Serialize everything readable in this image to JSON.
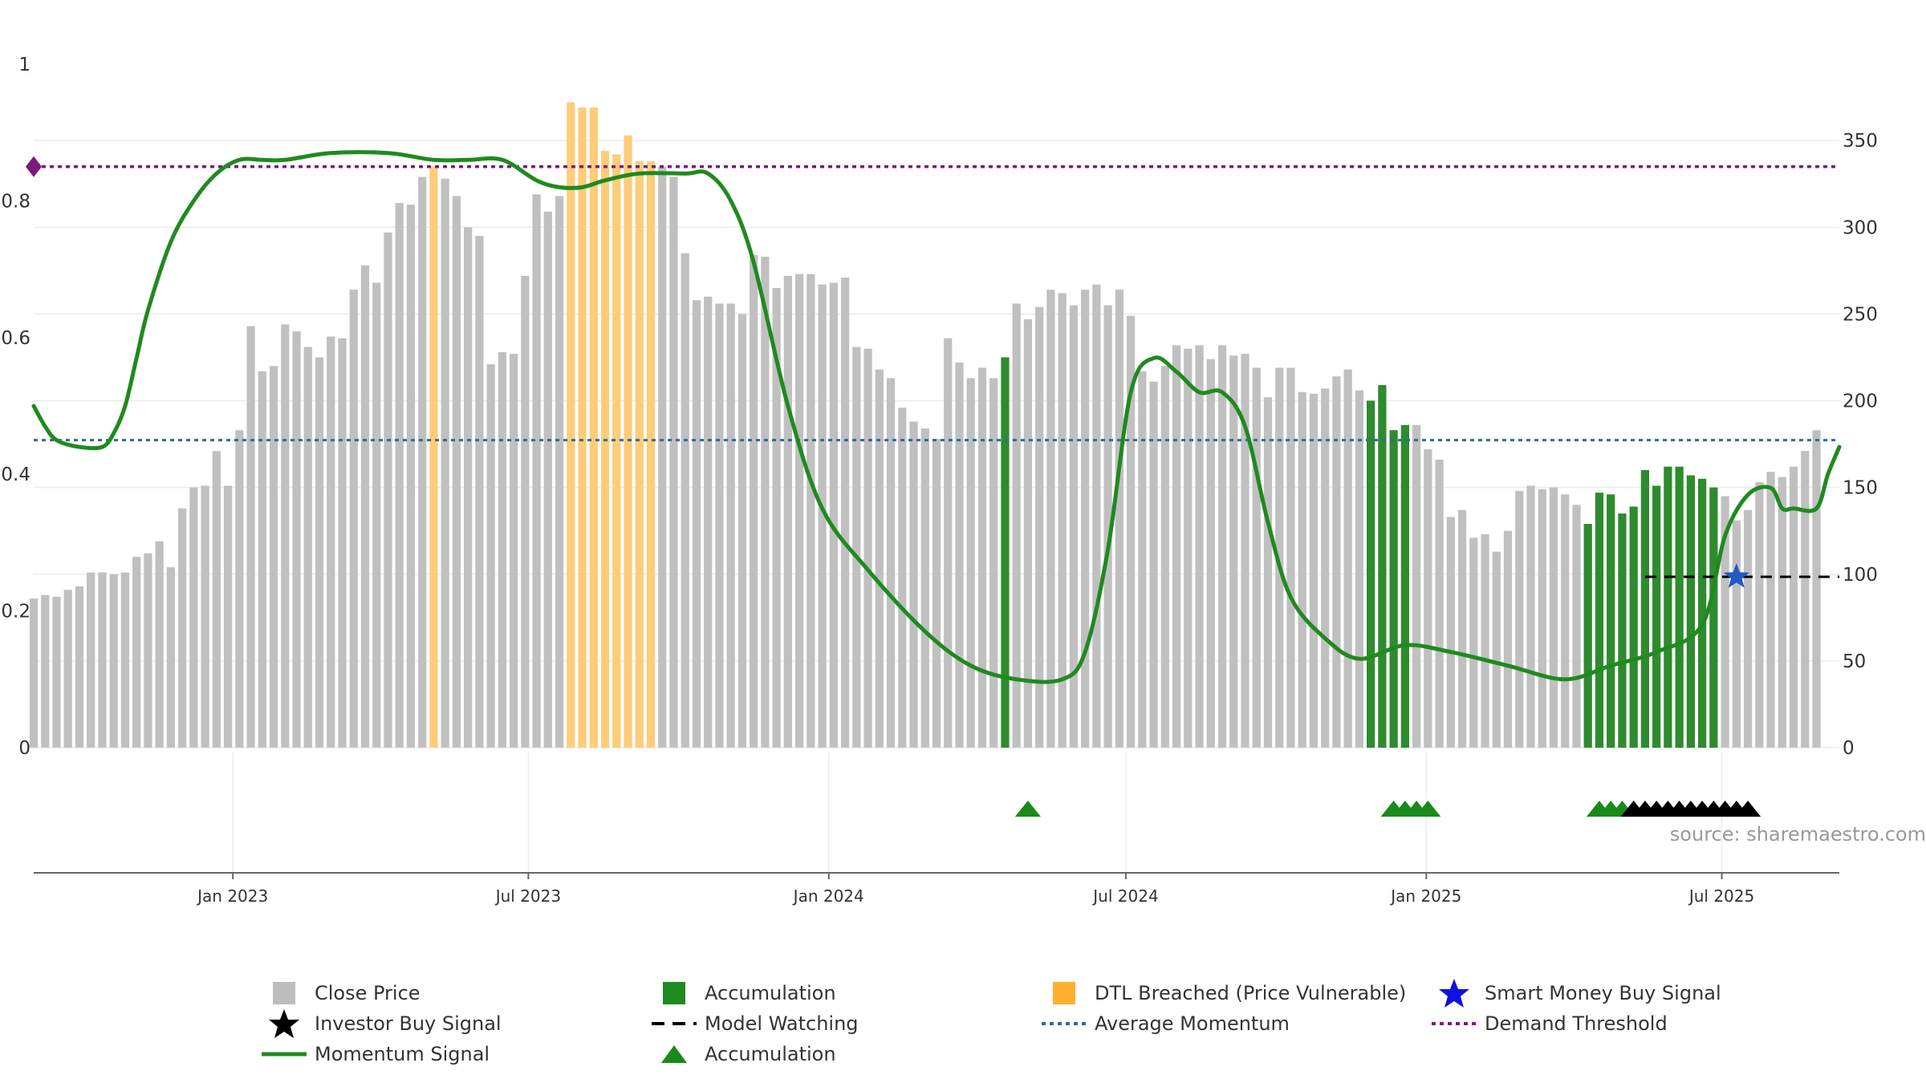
{
  "chart_data": {
    "type": "bar",
    "source": "source: sharemaestro.com",
    "x_range": [
      "2022-09-01",
      "2025-09-11"
    ],
    "y_left": {
      "range": [
        0,
        1
      ],
      "ticks": [
        0,
        0.2,
        0.4,
        0.6,
        0.8,
        1
      ],
      "tick_labels": [
        "0",
        "0.2",
        "0.4",
        "0.6",
        "0.8",
        "1"
      ]
    },
    "y_right": {
      "range": [
        0,
        394
      ],
      "ticks": [
        0,
        50,
        100,
        150,
        200,
        250,
        300,
        350
      ],
      "tick_labels": [
        "0",
        "50",
        "100",
        "150",
        "200",
        "250",
        "300",
        "350"
      ]
    },
    "x_ticks": [
      {
        "date": "2023-01-01",
        "label": "Jan 2023"
      },
      {
        "date": "2023-07-01",
        "label": "Jul 2023"
      },
      {
        "date": "2024-01-01",
        "label": "Jan 2024"
      },
      {
        "date": "2024-07-01",
        "label": "Jul 2024"
      },
      {
        "date": "2025-01-01",
        "label": "Jan 2025"
      },
      {
        "date": "2025-07-01",
        "label": "Jul 2025"
      }
    ],
    "close_price": {
      "start_date": "2022-09-01",
      "interval_days": 7,
      "values": [
        86,
        88,
        87,
        91,
        93,
        101,
        101,
        100,
        101,
        110,
        112,
        119,
        104,
        138,
        150,
        151,
        171,
        151,
        183,
        243,
        217,
        220,
        244,
        240,
        231,
        225,
        237,
        236,
        264,
        278,
        268,
        297,
        314,
        313,
        329,
        335,
        328,
        318,
        300,
        295,
        221,
        228,
        227,
        272,
        319,
        309,
        318,
        372,
        369,
        369,
        344,
        342,
        353,
        338,
        338,
        335,
        329,
        285,
        258,
        260,
        256,
        256,
        250,
        284,
        283,
        265,
        272,
        273,
        273,
        267,
        268,
        271,
        231,
        230,
        218,
        213,
        196,
        188,
        184,
        178,
        236,
        222,
        213,
        219,
        213,
        225,
        256,
        247,
        254,
        264,
        262,
        255,
        264,
        267,
        255,
        264,
        249,
        217,
        211,
        220,
        232,
        230,
        232,
        224,
        232,
        226,
        227,
        219,
        202,
        219,
        219,
        205,
        204,
        207,
        214,
        218,
        206,
        200,
        209,
        183,
        186,
        186,
        172,
        166,
        133,
        137,
        121,
        123,
        113,
        125,
        148,
        151,
        149,
        150,
        146,
        140,
        129,
        147,
        146,
        135,
        139,
        160,
        151,
        162,
        162,
        157,
        155,
        150,
        145,
        131,
        137,
        153,
        159,
        156,
        162,
        171,
        183
      ],
      "marks": [
        {
          "index": 35,
          "state": "dtl"
        },
        {
          "index": 47,
          "state": "dtl"
        },
        {
          "index": 48,
          "state": "dtl"
        },
        {
          "index": 49,
          "state": "dtl"
        },
        {
          "index": 50,
          "state": "dtl"
        },
        {
          "index": 51,
          "state": "dtl"
        },
        {
          "index": 52,
          "state": "dtl"
        },
        {
          "index": 53,
          "state": "dtl"
        },
        {
          "index": 54,
          "state": "dtl"
        },
        {
          "index": 85,
          "state": "accumulation"
        },
        {
          "index": 117,
          "state": "accumulation"
        },
        {
          "index": 118,
          "state": "accumulation"
        },
        {
          "index": 119,
          "state": "accumulation"
        },
        {
          "index": 120,
          "state": "accumulation"
        },
        {
          "index": 136,
          "state": "accumulation"
        },
        {
          "index": 137,
          "state": "accumulation"
        },
        {
          "index": 138,
          "state": "accumulation"
        },
        {
          "index": 139,
          "state": "accumulation"
        },
        {
          "index": 140,
          "state": "accumulation"
        },
        {
          "index": 141,
          "state": "accumulation"
        },
        {
          "index": 142,
          "state": "accumulation"
        },
        {
          "index": 143,
          "state": "accumulation"
        },
        {
          "index": 144,
          "state": "accumulation"
        },
        {
          "index": 145,
          "state": "accumulation"
        },
        {
          "index": 146,
          "state": "accumulation"
        },
        {
          "index": 147,
          "state": "accumulation"
        }
      ]
    },
    "momentum_signal": {
      "dates": [
        "2022-09-01",
        "2022-09-08",
        "2022-09-15",
        "2022-09-29",
        "2022-10-13",
        "2022-10-20",
        "2022-10-27",
        "2022-11-03",
        "2022-11-10",
        "2022-11-24",
        "2022-12-08",
        "2022-12-22",
        "2023-01-05",
        "2023-01-19",
        "2023-02-02",
        "2023-03-02",
        "2023-04-06",
        "2023-05-04",
        "2023-05-25",
        "2023-06-15",
        "2023-07-06",
        "2023-07-20",
        "2023-08-03",
        "2023-08-17",
        "2023-09-07",
        "2023-10-05",
        "2023-10-19",
        "2023-11-02",
        "2023-11-16",
        "2023-12-07",
        "2023-12-28",
        "2024-01-25",
        "2024-02-29",
        "2024-03-28",
        "2024-04-25",
        "2024-05-23",
        "2024-06-06",
        "2024-06-20",
        "2024-07-04",
        "2024-07-18",
        "2024-08-01",
        "2024-08-15",
        "2024-08-29",
        "2024-09-12",
        "2024-09-26",
        "2024-10-10",
        "2024-10-31",
        "2024-11-21",
        "2024-12-19",
        "2025-01-16",
        "2025-02-20",
        "2025-03-27",
        "2025-04-24",
        "2025-05-22",
        "2025-06-19",
        "2025-07-03",
        "2025-07-17",
        "2025-07-31",
        "2025-08-07",
        "2025-08-14",
        "2025-08-28",
        "2025-09-04",
        "2025-09-11"
      ],
      "values": [
        0.5,
        0.47,
        0.45,
        0.44,
        0.44,
        0.46,
        0.5,
        0.57,
        0.64,
        0.74,
        0.8,
        0.84,
        0.86,
        0.86,
        0.86,
        0.87,
        0.87,
        0.86,
        0.86,
        0.86,
        0.83,
        0.82,
        0.82,
        0.83,
        0.84,
        0.84,
        0.84,
        0.8,
        0.71,
        0.5,
        0.35,
        0.26,
        0.17,
        0.12,
        0.1,
        0.1,
        0.14,
        0.29,
        0.52,
        0.57,
        0.55,
        0.52,
        0.52,
        0.47,
        0.33,
        0.22,
        0.16,
        0.13,
        0.15,
        0.14,
        0.12,
        0.1,
        0.12,
        0.14,
        0.18,
        0.31,
        0.37,
        0.38,
        0.35,
        0.35,
        0.35,
        0.4,
        0.44
      ]
    },
    "average_momentum": 0.45,
    "demand_threshold": 0.85,
    "model_watching": {
      "start": "2025-05-15",
      "end": "2025-09-11",
      "value": 0.25
    },
    "smart_money_buy_signal": [
      {
        "date": "2025-07-10",
        "value": 0.25
      }
    ],
    "accumulation_markers": [
      "2024-05-02",
      "2024-12-12",
      "2024-12-19",
      "2024-12-26",
      "2025-01-02",
      "2025-04-17",
      "2025-04-24",
      "2025-05-01",
      "2025-05-08"
    ],
    "investor_buy_markers": [
      "2025-05-08",
      "2025-05-15",
      "2025-05-22",
      "2025-05-29",
      "2025-06-05",
      "2025-06-12",
      "2025-06-19",
      "2025-06-26",
      "2025-07-03",
      "2025-07-10",
      "2025-07-17"
    ],
    "colors": {
      "price": "#c0c0c0",
      "accumulation": "#2e8b2e",
      "dtl": "#ffcc7a",
      "momentum": "#1f8a1f",
      "average": "#2c6e91",
      "threshold": "#7a1a7a",
      "smart_money": "#2458c6",
      "investor": "#000000",
      "marker_green": "#1a8a1a"
    }
  },
  "legend": [
    {
      "symbol": "grey-square",
      "label": "Close Price"
    },
    {
      "symbol": "green-square",
      "label": "Accumulation"
    },
    {
      "symbol": "orange-square",
      "label": "DTL Breached (Price Vulnerable)"
    },
    {
      "symbol": "blue-star",
      "label": "Smart Money Buy Signal"
    },
    {
      "symbol": "black-star",
      "label": "Investor Buy Signal"
    },
    {
      "symbol": "black-dash",
      "label": "Model Watching"
    },
    {
      "symbol": "blue-dotted",
      "label": "Average Momentum"
    },
    {
      "symbol": "purple-dotted",
      "label": "Demand Threshold"
    },
    {
      "symbol": "green-line",
      "label": "Momentum Signal"
    },
    {
      "symbol": "green-triangle",
      "label": "Accumulation"
    }
  ]
}
